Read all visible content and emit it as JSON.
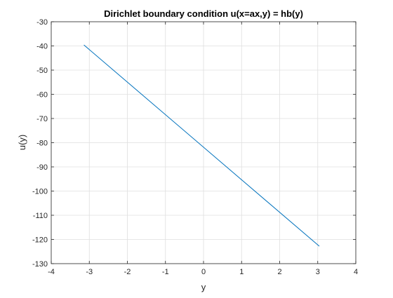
{
  "chart_data": {
    "type": "line",
    "title": "Dirichlet boundary condition u(x=ax,y) = hb(y)",
    "xlabel": "y",
    "ylabel": "u(y)",
    "xlim": [
      -4,
      4
    ],
    "ylim": [
      -130,
      -30
    ],
    "xticks": [
      "-4",
      "-3",
      "-2",
      "-1",
      "0",
      "1",
      "2",
      "3",
      "4"
    ],
    "yticks": [
      "-30",
      "-40",
      "-50",
      "-60",
      "-70",
      "-80",
      "-90",
      "-100",
      "-110",
      "-120",
      "-130"
    ],
    "grid": true,
    "series": [
      {
        "color": "#0072bd",
        "x": [
          -3.1416,
          3.0416
        ],
        "y": [
          -39.6,
          -122.8
        ]
      }
    ]
  }
}
